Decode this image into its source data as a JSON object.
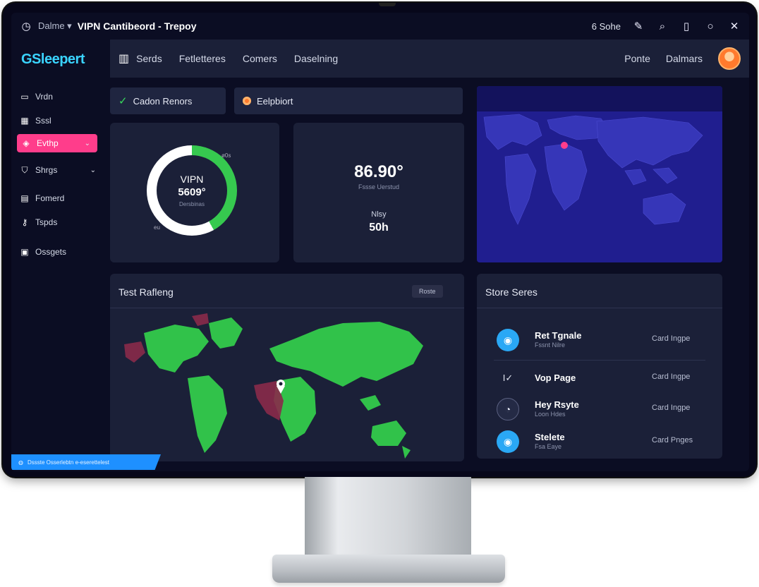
{
  "titlebar": {
    "menu": "Dalme ▾",
    "title": "VIPN Cantibeord - Trepoy",
    "status": "6 Sohe",
    "icons": [
      "pen-icon",
      "search-icon",
      "phone-icon",
      "circle-icon",
      "close-icon"
    ]
  },
  "header": {
    "logo": "GSleepert",
    "nav": [
      "Serds",
      "Fetletteres",
      "Comers",
      "Daselning"
    ],
    "right": [
      "Ponte",
      "Dalmars"
    ]
  },
  "sidebar": {
    "items": [
      {
        "label": "Vrdn",
        "icon": "monitor-icon"
      },
      {
        "label": "Sssl",
        "icon": "grid-icon"
      },
      {
        "label": "Evthp",
        "icon": "tag-icon",
        "active": true
      },
      {
        "label": "Shrgs",
        "icon": "shield-icon"
      },
      {
        "label": "Fomerd",
        "icon": "folder-icon"
      },
      {
        "label": "Tspds",
        "icon": "key-icon"
      },
      {
        "label": "Ossgets",
        "icon": "chart-icon"
      }
    ]
  },
  "pills": {
    "connection": "Cadon Renors",
    "endpoint": "Eelpbiort"
  },
  "donut": {
    "label": "VIPN",
    "value": "5609°",
    "caption": "Dersbinas",
    "percent": 42,
    "tiny_top": "ø0s",
    "tiny_bottom": "eu"
  },
  "stats": {
    "big": "86.90°",
    "sub": "Fssse Uerstud",
    "label": "Nlsy",
    "value": "50h"
  },
  "test_panel": {
    "title": "Test Rafleng",
    "badge": "Roste"
  },
  "store_panel": {
    "title": "Store Seres",
    "rows": [
      {
        "name": "Ret Tgnale",
        "sub": "Fssnt Nilre",
        "right": "Card Ingpe",
        "icon": "location-icon",
        "style": "blue"
      },
      {
        "name": "Vop Page",
        "sub": "",
        "right": "Card Ingpe",
        "icon": "check-icon",
        "style": "plain"
      },
      {
        "name": "Hey Rsyte",
        "sub": "Loon Hdes",
        "right": "Card Ingpe",
        "icon": "speed-icon",
        "style": "dark"
      },
      {
        "name": "Stelete",
        "sub": "Fsa Eaye",
        "right": "Card Pnges",
        "icon": "location-icon",
        "style": "blue"
      }
    ]
  },
  "statusbar": {
    "text": "Dssste Osserlebtn e-eserettelest"
  },
  "colors": {
    "accent_pink": "#ff3d8b",
    "accent_blue": "#3ad4ff",
    "green": "#36c94f",
    "map_blue": "#201e8f"
  }
}
